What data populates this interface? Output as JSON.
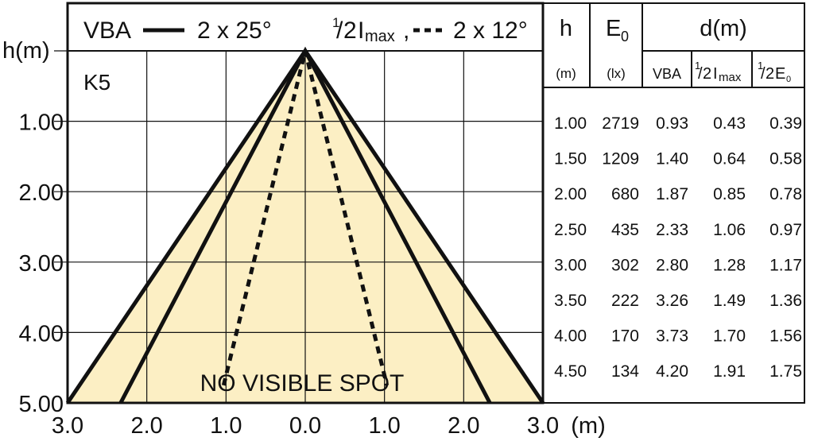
{
  "chart_data": {
    "type": "line",
    "title": "",
    "fixture_label": "K5",
    "y_axis_label": "h(m)",
    "x_axis_unit": "(m)",
    "y_ticks": [
      "1.00",
      "2.00",
      "3.00",
      "4.00",
      "5.00"
    ],
    "x_ticks": [
      "3.0",
      "2.0",
      "1.0",
      "0.0",
      "1.0",
      "2.0",
      "3.0"
    ],
    "xlim": [
      -3,
      3
    ],
    "ylim": [
      0,
      5
    ],
    "legend": {
      "vba_label": "VBA",
      "vba_value": "2 x 25°",
      "half_imax_value": "2 x 12°"
    },
    "note": "NO VISIBLE SPOT",
    "series": [
      {
        "name": "VBA",
        "style": "solid",
        "x": [
          -2.33,
          0,
          2.33
        ],
        "y": [
          5,
          0,
          5
        ]
      },
      {
        "name": "1/2Imax",
        "style": "dashed",
        "x": [
          -1.03,
          0,
          1.03
        ],
        "y": [
          4.75,
          0,
          4.75
        ]
      },
      {
        "name": "1/2E0",
        "style": "solid",
        "x": [
          -3,
          0,
          3
        ],
        "y": [
          5,
          0,
          5
        ]
      }
    ],
    "colors": {
      "fill": "#fcefc4",
      "line": "#111111",
      "grid": "#111111"
    },
    "grid": true,
    "table": {
      "headers": {
        "h": "h",
        "e0": "E",
        "e0_sub": "0",
        "d": "d(m)"
      },
      "units": {
        "h": "(m)",
        "e0": "(lx)",
        "vba": "VBA",
        "half_imax": "I",
        "half_imax_sub": "max",
        "half_e0": "E",
        "half_e0_sub": "0",
        "half": "1",
        "half_den": "2"
      },
      "rows": [
        {
          "h": "1.00",
          "e0": "2719",
          "vba": "0.93",
          "imax": "0.43",
          "e0half": "0.39"
        },
        {
          "h": "1.50",
          "e0": "1209",
          "vba": "1.40",
          "imax": "0.64",
          "e0half": "0.58"
        },
        {
          "h": "2.00",
          "e0": "680",
          "vba": "1.87",
          "imax": "0.85",
          "e0half": "0.78"
        },
        {
          "h": "2.50",
          "e0": "435",
          "vba": "2.33",
          "imax": "1.06",
          "e0half": "0.97"
        },
        {
          "h": "3.00",
          "e0": "302",
          "vba": "2.80",
          "imax": "1.28",
          "e0half": "1.17"
        },
        {
          "h": "3.50",
          "e0": "222",
          "vba": "3.26",
          "imax": "1.49",
          "e0half": "1.36"
        },
        {
          "h": "4.00",
          "e0": "170",
          "vba": "3.73",
          "imax": "1.70",
          "e0half": "1.56"
        },
        {
          "h": "4.50",
          "e0": "134",
          "vba": "4.20",
          "imax": "1.91",
          "e0half": "1.75"
        }
      ]
    }
  }
}
